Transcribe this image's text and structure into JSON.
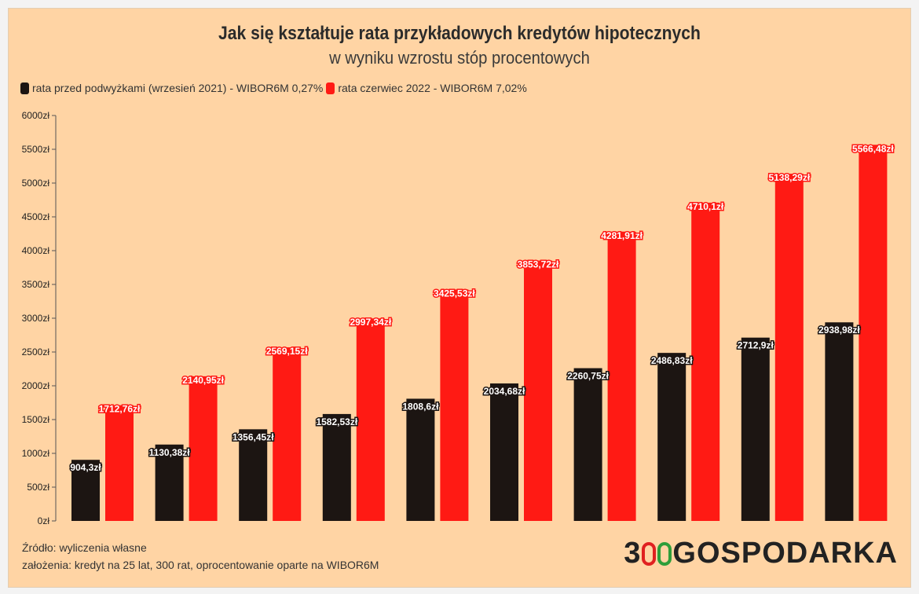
{
  "title": "Jak się kształtuje rata przykładowych kredytów hipotecznych",
  "subtitle": "w wyniku wzrostu stóp procentowych",
  "legend": [
    {
      "label": "rata przed podwyżkami (wrzesień 2021) - WIBOR6M 0,27%",
      "color": "#1c1512"
    },
    {
      "label": "rata czerwiec 2022 - WIBOR6M 7,02%",
      "color": "#ff1a14"
    }
  ],
  "footer": {
    "source": "Źródło: wyliczenia własne",
    "assumptions": "założenia: kredyt na 25 lat, 300 rat, oprocentowanie oparte na WIBOR6M"
  },
  "logo": {
    "prefix": "3",
    "suffix": "GOSPODARKA",
    "o_colors": [
      "#e02020",
      "#2e9e3a"
    ]
  },
  "chart_data": {
    "type": "bar",
    "title": "Jak się kształtuje rata przykładowych kredytów hipotecznych",
    "subtitle": "w wyniku wzrostu stóp procentowych",
    "categories": [
      "",
      "",
      "",
      "",
      "",
      "",
      "",
      "",
      "",
      ""
    ],
    "ylim": [
      0,
      6000
    ],
    "yticks": [
      0,
      500,
      1000,
      1500,
      2000,
      2500,
      3000,
      3500,
      4000,
      4500,
      5000,
      5500,
      6000
    ],
    "ytick_labels": [
      "0zł",
      "500zł",
      "1000zł",
      "1500zł",
      "2000zł",
      "2500zł",
      "3000zł",
      "3500zł",
      "4000zł",
      "4500zł",
      "5000zł",
      "5500zł",
      "6000zł"
    ],
    "grid": false,
    "legend_position": "top-left",
    "series": [
      {
        "name": "rata przed podwyżkami (wrzesień 2021) - WIBOR6M 0,27%",
        "color": "#1c1512",
        "label_color": "#ffffff",
        "values": [
          904.3,
          1130.38,
          1356.45,
          1582.53,
          1808.6,
          2034.68,
          2260.75,
          2486.83,
          2712.9,
          2938.98
        ],
        "labels": [
          "904,3zł",
          "1130,38zł",
          "1356,45zł",
          "1582,53zł",
          "1808,6zł",
          "2034,68zł",
          "2260,75zł",
          "2486,83zł",
          "2712,9zł",
          "2938,98zł"
        ]
      },
      {
        "name": "rata czerwiec 2022 - WIBOR6M 7,02%",
        "color": "#ff1a14",
        "label_color": "#ffffff",
        "values": [
          1712.76,
          2140.95,
          2569.15,
          2997.34,
          3425.53,
          3853.72,
          4281.91,
          4710.1,
          5138.29,
          5566.48
        ],
        "labels": [
          "1712,76zł",
          "2140,95zł",
          "2569,15zł",
          "2997,34zł",
          "3425,53zł",
          "3853,72zł",
          "4281,91zł",
          "4710,1zł",
          "5138,29zł",
          "5566,48zł"
        ]
      }
    ]
  }
}
